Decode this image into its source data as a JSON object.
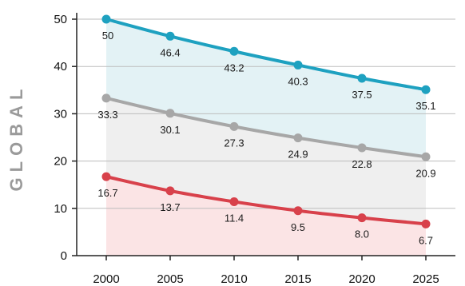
{
  "chart_data": {
    "type": "line",
    "title": "",
    "ylabel": "GLOBAL",
    "xlabel": "",
    "x": [
      2000,
      2005,
      2010,
      2015,
      2020,
      2025
    ],
    "x_tick_labels": [
      "2000",
      "2005",
      "2010",
      "2015",
      "2020",
      "2025"
    ],
    "ylim": [
      0,
      50
    ],
    "y_ticks": [
      0,
      10,
      20,
      30,
      40,
      50
    ],
    "grid": "horizontal",
    "legend": "none",
    "series": [
      {
        "values": [
          50,
          46.4,
          43.2,
          40.3,
          37.5,
          35.1
        ],
        "labels": [
          "50",
          "46.4",
          "43.2",
          "40.3",
          "37.5",
          "35.1"
        ],
        "color": "#1ea1c0",
        "fill": "#e3f2f5"
      },
      {
        "values": [
          33.3,
          30.1,
          27.3,
          24.9,
          22.8,
          20.9
        ],
        "labels": [
          "33.3",
          "30.1",
          "27.3",
          "24.9",
          "22.8",
          "20.9"
        ],
        "color": "#a7a7a7",
        "fill": "#efefef"
      },
      {
        "values": [
          16.7,
          13.7,
          11.4,
          9.5,
          8.0,
          6.7
        ],
        "labels": [
          "16.7",
          "13.7",
          "11.4",
          "9.5",
          "8.0",
          "6.7"
        ],
        "color": "#d8414b",
        "fill": "#fbe4e5"
      }
    ]
  }
}
